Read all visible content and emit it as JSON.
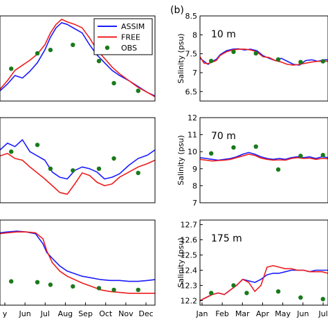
{
  "figure": {
    "panel_label": "(b)"
  },
  "legend": [
    {
      "name": "ASSIM",
      "color": "#1a1aff",
      "kind": "line"
    },
    {
      "name": "FREE",
      "color": "#ee1c1c",
      "kind": "line"
    },
    {
      "name": "OBS",
      "color": "#1a7a1a",
      "kind": "dot"
    }
  ],
  "chart_data": [
    {
      "type": "line",
      "column": "left",
      "row": "top",
      "x_ticks": [],
      "xlim": [
        4.6,
        12.9
      ],
      "ylim": [
        0,
        1
      ],
      "series": [
        {
          "name": "ASSIM",
          "color": "#1a1aff",
          "x": [
            4.6,
            5.0,
            5.4,
            5.8,
            6.2,
            6.6,
            7.0,
            7.3,
            7.6,
            7.9,
            8.2,
            8.6,
            9.0,
            9.4,
            9.8,
            10.2,
            10.6,
            11.0,
            11.5,
            12.0,
            12.5,
            12.9
          ],
          "y": [
            0.12,
            0.2,
            0.3,
            0.27,
            0.35,
            0.45,
            0.6,
            0.75,
            0.86,
            0.92,
            0.9,
            0.85,
            0.8,
            0.66,
            0.54,
            0.45,
            0.36,
            0.3,
            0.24,
            0.17,
            0.1,
            0.06
          ]
        },
        {
          "name": "FREE",
          "color": "#ee1c1c",
          "x": [
            4.6,
            5.0,
            5.4,
            5.8,
            6.2,
            6.6,
            7.0,
            7.3,
            7.6,
            7.9,
            8.2,
            8.6,
            9.0,
            9.4,
            9.8,
            10.2,
            10.6,
            11.0,
            11.5,
            12.0,
            12.5,
            12.9
          ],
          "y": [
            0.14,
            0.24,
            0.36,
            0.42,
            0.48,
            0.55,
            0.66,
            0.8,
            0.9,
            0.96,
            0.93,
            0.9,
            0.86,
            0.74,
            0.6,
            0.5,
            0.4,
            0.32,
            0.24,
            0.16,
            0.1,
            0.05
          ]
        },
        {
          "name": "OBS",
          "color": "#1a7a1a",
          "x": [
            5.2,
            6.6,
            7.3,
            8.5,
            9.9,
            10.7,
            12.0
          ],
          "y": [
            0.38,
            0.56,
            0.6,
            0.66,
            0.47,
            0.21,
            0.12
          ]
        }
      ]
    },
    {
      "type": "line",
      "column": "left",
      "row": "middle",
      "x_ticks": [],
      "xlim": [
        4.6,
        12.9
      ],
      "ylim": [
        0,
        1
      ],
      "series": [
        {
          "name": "ASSIM",
          "color": "#1a1aff",
          "x": [
            4.6,
            5.0,
            5.4,
            5.8,
            6.2,
            6.6,
            7.0,
            7.4,
            7.8,
            8.2,
            8.6,
            9.0,
            9.4,
            9.8,
            10.2,
            10.6,
            11.0,
            11.5,
            12.0,
            12.5,
            12.9
          ],
          "y": [
            0.62,
            0.7,
            0.66,
            0.74,
            0.6,
            0.55,
            0.5,
            0.36,
            0.3,
            0.28,
            0.38,
            0.42,
            0.4,
            0.36,
            0.28,
            0.3,
            0.34,
            0.44,
            0.52,
            0.56,
            0.62
          ]
        },
        {
          "name": "FREE",
          "color": "#ee1c1c",
          "x": [
            4.6,
            5.0,
            5.4,
            5.8,
            6.2,
            6.6,
            7.0,
            7.4,
            7.8,
            8.2,
            8.6,
            9.0,
            9.4,
            9.8,
            10.2,
            10.6,
            11.0,
            11.5,
            12.0,
            12.5,
            12.9
          ],
          "y": [
            0.55,
            0.58,
            0.52,
            0.5,
            0.42,
            0.35,
            0.28,
            0.2,
            0.12,
            0.1,
            0.22,
            0.35,
            0.32,
            0.24,
            0.2,
            0.22,
            0.3,
            0.36,
            0.42,
            0.46,
            0.5
          ]
        },
        {
          "name": "OBS",
          "color": "#1a7a1a",
          "x": [
            5.2,
            6.6,
            7.3,
            8.5,
            9.9,
            10.7,
            12.0
          ],
          "y": [
            0.6,
            0.68,
            0.4,
            0.38,
            0.4,
            0.52,
            0.35
          ]
        }
      ]
    },
    {
      "type": "line",
      "column": "left",
      "row": "bottom",
      "x_ticks": [
        "y",
        "Jun",
        "Jul",
        "Aug",
        "Sep",
        "Oct",
        "Nov",
        "Dec"
      ],
      "xlim": [
        4.6,
        12.9
      ],
      "ylim": [
        0,
        1
      ],
      "series": [
        {
          "name": "ASSIM",
          "color": "#1a1aff",
          "x": [
            4.6,
            5.0,
            5.5,
            6.0,
            6.5,
            6.9,
            7.1,
            7.4,
            7.8,
            8.2,
            8.6,
            9.0,
            9.5,
            10.0,
            10.5,
            11.0,
            11.5,
            12.0,
            12.5,
            12.9
          ],
          "y": [
            0.85,
            0.86,
            0.87,
            0.86,
            0.84,
            0.72,
            0.62,
            0.55,
            0.46,
            0.4,
            0.37,
            0.34,
            0.32,
            0.3,
            0.29,
            0.29,
            0.28,
            0.28,
            0.29,
            0.3
          ]
        },
        {
          "name": "FREE",
          "color": "#ee1c1c",
          "x": [
            4.6,
            5.0,
            5.5,
            6.0,
            6.5,
            6.9,
            7.1,
            7.4,
            7.8,
            8.2,
            8.6,
            9.0,
            9.5,
            10.0,
            10.5,
            11.0,
            11.5,
            12.0,
            12.5,
            12.9
          ],
          "y": [
            0.84,
            0.85,
            0.86,
            0.86,
            0.85,
            0.78,
            0.64,
            0.5,
            0.4,
            0.34,
            0.3,
            0.26,
            0.22,
            0.18,
            0.16,
            0.15,
            0.14,
            0.14,
            0.14,
            0.14
          ]
        },
        {
          "name": "OBS",
          "color": "#1a7a1a",
          "x": [
            5.2,
            6.6,
            7.3,
            8.5,
            9.9,
            10.7,
            12.0
          ],
          "y": [
            0.28,
            0.27,
            0.24,
            0.22,
            0.2,
            0.18,
            0.18
          ]
        }
      ]
    },
    {
      "type": "line",
      "column": "right",
      "row": "top",
      "depth_label": "10 m",
      "ylabel": "Salinity (psu)",
      "x_ticks": [],
      "y_ticks": [
        6.5,
        7.0,
        7.5,
        8.0,
        8.5
      ],
      "xlim": [
        0,
        6.3
      ],
      "ylim": [
        6.25,
        8.5
      ],
      "series": [
        {
          "name": "ASSIM",
          "color": "#1a1aff",
          "x": [
            0,
            0.2,
            0.4,
            0.6,
            0.8,
            1.0,
            1.3,
            1.6,
            1.9,
            2.2,
            2.5,
            2.8,
            3.1,
            3.4,
            3.7,
            4.0,
            4.3,
            4.6,
            4.9,
            5.2,
            5.5,
            5.8,
            6.1,
            6.3
          ],
          "y": [
            7.38,
            7.3,
            7.22,
            7.3,
            7.35,
            7.48,
            7.58,
            7.62,
            7.63,
            7.6,
            7.62,
            7.58,
            7.45,
            7.38,
            7.32,
            7.38,
            7.3,
            7.22,
            7.2,
            7.32,
            7.34,
            7.3,
            7.34,
            7.34
          ]
        },
        {
          "name": "FREE",
          "color": "#ee1c1c",
          "x": [
            0,
            0.2,
            0.4,
            0.6,
            0.8,
            1.0,
            1.3,
            1.6,
            1.9,
            2.2,
            2.5,
            2.8,
            3.1,
            3.4,
            3.7,
            4.0,
            4.3,
            4.6,
            4.9,
            5.2,
            5.5,
            5.8,
            6.1,
            6.3
          ],
          "y": [
            7.42,
            7.25,
            7.24,
            7.28,
            7.32,
            7.46,
            7.55,
            7.6,
            7.62,
            7.62,
            7.6,
            7.55,
            7.42,
            7.4,
            7.32,
            7.28,
            7.22,
            7.2,
            7.22,
            7.25,
            7.28,
            7.3,
            7.3,
            7.3
          ]
        },
        {
          "name": "OBS",
          "color": "#1a7a1a",
          "x": [
            0.55,
            1.65,
            2.75,
            3.85,
            4.95,
            6.05
          ],
          "y": [
            7.31,
            7.55,
            7.51,
            7.35,
            7.28,
            7.3
          ]
        }
      ]
    },
    {
      "type": "line",
      "column": "right",
      "row": "middle",
      "depth_label": "70 m",
      "ylabel": "Salinity (psu)",
      "x_ticks": [],
      "y_ticks": [
        7,
        8,
        9,
        10,
        11,
        12
      ],
      "xlim": [
        0,
        6.3
      ],
      "ylim": [
        7,
        12
      ],
      "series": [
        {
          "name": "ASSIM",
          "color": "#1a1aff",
          "x": [
            0,
            0.3,
            0.6,
            0.9,
            1.2,
            1.5,
            1.8,
            2.1,
            2.4,
            2.7,
            3.0,
            3.3,
            3.6,
            3.9,
            4.2,
            4.5,
            4.8,
            5.1,
            5.4,
            5.7,
            6.0,
            6.3
          ],
          "y": [
            9.65,
            9.6,
            9.55,
            9.5,
            9.55,
            9.6,
            9.7,
            9.85,
            9.95,
            9.85,
            9.7,
            9.6,
            9.55,
            9.6,
            9.55,
            9.65,
            9.7,
            9.65,
            9.7,
            9.6,
            9.7,
            9.65
          ]
        },
        {
          "name": "FREE",
          "color": "#ee1c1c",
          "x": [
            0,
            0.3,
            0.6,
            0.9,
            1.2,
            1.5,
            1.8,
            2.1,
            2.4,
            2.7,
            3.0,
            3.3,
            3.6,
            3.9,
            4.2,
            4.5,
            4.8,
            5.1,
            5.4,
            5.7,
            6.0,
            6.3
          ],
          "y": [
            9.55,
            9.5,
            9.45,
            9.48,
            9.5,
            9.55,
            9.65,
            9.75,
            9.85,
            9.78,
            9.62,
            9.55,
            9.5,
            9.52,
            9.5,
            9.6,
            9.65,
            9.6,
            9.62,
            9.55,
            9.6,
            9.58
          ]
        },
        {
          "name": "OBS",
          "color": "#1a7a1a",
          "x": [
            0.55,
            1.65,
            2.75,
            3.85,
            4.95,
            6.05
          ],
          "y": [
            9.9,
            10.25,
            10.3,
            8.95,
            9.75,
            9.8
          ]
        }
      ]
    },
    {
      "type": "line",
      "column": "right",
      "row": "bottom",
      "depth_label": "175 m",
      "ylabel": "Salinity (psu)",
      "x_ticks": [
        "Jan",
        "Feb",
        "Mar",
        "Apr",
        "May",
        "Jun",
        "Jul"
      ],
      "y_ticks": [
        12.2,
        12.3,
        12.4,
        12.5,
        12.6,
        12.7
      ],
      "xlim": [
        0,
        6.3
      ],
      "ylim": [
        12.17,
        12.73
      ],
      "series": [
        {
          "name": "ASSIM",
          "color": "#1a1aff",
          "x": [
            0,
            0.3,
            0.6,
            0.9,
            1.2,
            1.5,
            1.8,
            2.1,
            2.4,
            2.7,
            3.0,
            3.3,
            3.6,
            3.9,
            4.2,
            4.5,
            4.8,
            5.1,
            5.4,
            5.7,
            6.0,
            6.3
          ],
          "y": [
            12.2,
            12.22,
            12.24,
            12.25,
            12.24,
            12.27,
            12.3,
            12.34,
            12.33,
            12.32,
            12.34,
            12.37,
            12.38,
            12.38,
            12.39,
            12.4,
            12.4,
            12.4,
            12.39,
            12.4,
            12.4,
            12.4
          ]
        },
        {
          "name": "FREE",
          "color": "#ee1c1c",
          "x": [
            0,
            0.3,
            0.6,
            0.9,
            1.2,
            1.5,
            1.8,
            2.1,
            2.4,
            2.7,
            3.0,
            3.3,
            3.6,
            3.9,
            4.2,
            4.5,
            4.8,
            5.1,
            5.4,
            5.7,
            6.0,
            6.3
          ],
          "y": [
            12.2,
            12.22,
            12.24,
            12.25,
            12.24,
            12.27,
            12.3,
            12.34,
            12.32,
            12.26,
            12.3,
            12.42,
            12.43,
            12.42,
            12.41,
            12.41,
            12.4,
            12.4,
            12.39,
            12.39,
            12.39,
            12.38
          ]
        },
        {
          "name": "OBS",
          "color": "#1a7a1a",
          "x": [
            0.55,
            1.65,
            2.3,
            3.85,
            4.95,
            6.05
          ],
          "y": [
            12.25,
            12.3,
            12.25,
            12.26,
            12.22,
            12.21
          ]
        }
      ]
    }
  ]
}
